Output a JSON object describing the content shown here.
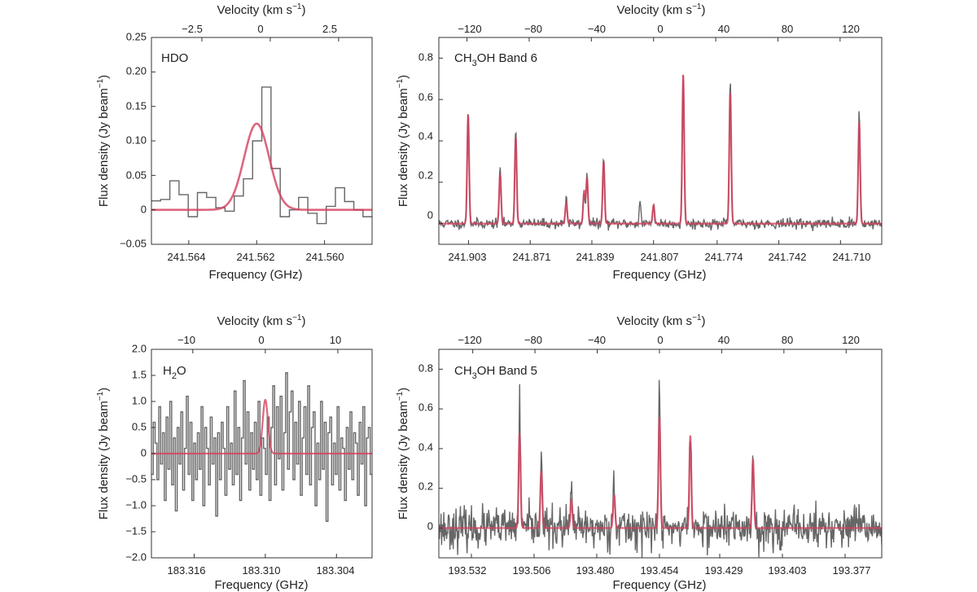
{
  "colors": {
    "data": "#666666",
    "model": "#d6405e",
    "axis": "#333333"
  },
  "chart_data": [
    {
      "type": "line",
      "panel_label": "HDO",
      "xlabel": "Frequency (GHz)",
      "ylabel": "Flux density (Jy beam",
      "ylabel_sup": "−1",
      "ylabel_end": ")",
      "top_label": "Velocity (km s",
      "top_label_sup": "−1",
      "top_label_end": ")",
      "xlim": [
        241.5651,
        241.5586
      ],
      "ylim": [
        -0.05,
        0.25
      ],
      "xticks": [
        241.564,
        241.562,
        241.56
      ],
      "xtick_labels": [
        "241.564",
        "241.562",
        "241.560"
      ],
      "yticks": [
        -0.05,
        0,
        0.05,
        0.1,
        0.15,
        0.2,
        0.25
      ],
      "ytick_labels": [
        "−0.05",
        "0",
        "0.05",
        "0.10",
        "0.15",
        "0.20",
        "0.25"
      ],
      "top_ticks": [
        -2.5,
        0,
        2.5
      ],
      "top_tick_labels": [
        "−2.5",
        "0",
        "2.5"
      ],
      "vel_ref_freq": 241.5616,
      "observed": {
        "style": "step",
        "start": 241.5651,
        "step": -0.000271,
        "values": [
          0.013,
          0.015,
          0.042,
          0.022,
          -0.01,
          0.025,
          0.018,
          0.003,
          -0.002,
          0.02,
          0.045,
          0.1,
          0.178,
          0.06,
          -0.01,
          0.0,
          0.018,
          -0.005,
          -0.02,
          0.005,
          0.032,
          0.012,
          0.0,
          -0.01
        ]
      },
      "model": {
        "style": "line",
        "lines": [
          {
            "center": 241.562,
            "amp": 0.125,
            "width": 0.00037
          }
        ]
      }
    },
    {
      "type": "line",
      "panel_label": "CH",
      "panel_label_sub": "3",
      "panel_label_end": "OH Band 6",
      "xlabel": "Frequency (GHz)",
      "ylabel": "Flux density (Jy beam",
      "ylabel_sup": "−1",
      "ylabel_end": ")",
      "top_label": "Velocity (km s",
      "top_label_sup": "−1",
      "top_label_end": ")",
      "xlim": [
        241.9184,
        241.6886
      ],
      "ylim": [
        -0.1,
        0.9
      ],
      "xticks": [
        241.903,
        241.871,
        241.839,
        241.807,
        241.774,
        241.742,
        241.71
      ],
      "xtick_labels": [
        "241.903",
        "241.871",
        "241.839",
        "241.807",
        "241.774",
        "241.742",
        "241.710"
      ],
      "yticks": [
        0,
        0.2,
        0.4,
        0.6,
        0.8
      ],
      "ytick_labels": [
        "0",
        "0.2",
        "0.4",
        "0.6",
        "0.8"
      ],
      "top_ticks": [
        -120,
        -80,
        -40,
        0,
        40,
        80,
        120
      ],
      "top_tick_labels": [
        "−120",
        "−80",
        "−40",
        "0",
        "40",
        "80",
        "120"
      ],
      "vel_ref_freq": 241.807,
      "observed": {
        "style": "noise",
        "n": 700,
        "noise": 0.012,
        "seed": 11,
        "lines": [
          {
            "center": 241.9032,
            "amp": 0.56,
            "width": 0.00045
          },
          {
            "center": 241.8866,
            "amp": 0.28,
            "width": 0.00045
          },
          {
            "center": 241.8785,
            "amp": 0.47,
            "width": 0.00045
          },
          {
            "center": 241.8523,
            "amp": 0.14,
            "width": 0.00045
          },
          {
            "center": 241.843,
            "amp": 0.16,
            "width": 0.00045
          },
          {
            "center": 241.8415,
            "amp": 0.25,
            "width": 0.00045
          },
          {
            "center": 241.8329,
            "amp": 0.33,
            "width": 0.00045
          },
          {
            "center": 241.814,
            "amp": 0.1,
            "width": 0.00045
          },
          {
            "center": 241.807,
            "amp": 0.09,
            "width": 0.00045
          },
          {
            "center": 241.7916,
            "amp": 0.72,
            "width": 0.00045
          },
          {
            "center": 241.7672,
            "amp": 0.71,
            "width": 0.00045
          },
          {
            "center": 241.7003,
            "amp": 0.55,
            "width": 0.00045
          }
        ]
      },
      "model": {
        "style": "line",
        "lines": [
          {
            "center": 241.9032,
            "amp": 0.53,
            "width": 0.0005
          },
          {
            "center": 241.8866,
            "amp": 0.24,
            "width": 0.0005
          },
          {
            "center": 241.8785,
            "amp": 0.42,
            "width": 0.0005
          },
          {
            "center": 241.8523,
            "amp": 0.1,
            "width": 0.0005
          },
          {
            "center": 241.843,
            "amp": 0.16,
            "width": 0.0005
          },
          {
            "center": 241.8415,
            "amp": 0.22,
            "width": 0.0005
          },
          {
            "center": 241.8329,
            "amp": 0.3,
            "width": 0.0005
          },
          {
            "center": 241.807,
            "amp": 0.09,
            "width": 0.0005
          },
          {
            "center": 241.7916,
            "amp": 0.72,
            "width": 0.0005
          },
          {
            "center": 241.7672,
            "amp": 0.64,
            "width": 0.0005
          },
          {
            "center": 241.7003,
            "amp": 0.49,
            "width": 0.0005
          }
        ]
      }
    },
    {
      "type": "line",
      "panel_label": "H",
      "panel_label_sub": "2",
      "panel_label_end": "O",
      "xlabel": "Frequency (GHz)",
      "ylabel": "Flux density (Jy beam",
      "ylabel_sup": "−1",
      "ylabel_end": ")",
      "top_label": "Velocity (km s",
      "top_label_sup": "−1",
      "top_label_end": ")",
      "xlim": [
        183.3196,
        183.301
      ],
      "ylim": [
        -2.0,
        2.0
      ],
      "xticks": [
        183.316,
        183.31,
        183.304
      ],
      "xtick_labels": [
        "183.316",
        "183.310",
        "183.304"
      ],
      "yticks": [
        -2.0,
        -1.5,
        -1.0,
        -0.5,
        0,
        0.5,
        1.0,
        1.5,
        2.0
      ],
      "ytick_labels": [
        "−2.0",
        "−1.5",
        "−1.0",
        "−0.5",
        "0",
        "0.5",
        "1.0",
        "1.5",
        "2.0"
      ],
      "top_ticks": [
        -10,
        0,
        10
      ],
      "top_tick_labels": [
        "−10",
        "0",
        "10"
      ],
      "vel_ref_freq": 183.31,
      "observed": {
        "style": "step",
        "start": 183.3196,
        "step": -0.000155,
        "values": [
          -0.4,
          0.6,
          0.2,
          -0.5,
          0.9,
          -0.2,
          0.4,
          -0.9,
          0.7,
          -0.3,
          1.0,
          -0.6,
          0.3,
          -1.1,
          0.5,
          -0.2,
          0.8,
          -0.7,
          0.1,
          1.1,
          -0.4,
          0.6,
          -0.9,
          0.2,
          -0.5,
          0.4,
          -0.3,
          0.9,
          -1.0,
          0.5,
          0.1,
          -0.6,
          0.7,
          -0.2,
          0.3,
          -1.2,
          0.4,
          -0.5,
          0.6,
          0.1,
          -0.8,
          0.9,
          -0.3,
          0.2,
          -0.6,
          1.2,
          -0.4,
          0.5,
          -0.9,
          0.3,
          1.4,
          -0.2,
          0.8,
          -0.7,
          0.4,
          -0.3,
          0.6,
          -0.5,
          1.0,
          -0.8,
          0.3,
          0.1,
          -0.4,
          0.7,
          -0.9,
          0.5,
          1.3,
          -0.6,
          0.9,
          -0.1,
          1.1,
          -0.7,
          0.4,
          1.55,
          -0.3,
          0.8,
          1.2,
          -0.5,
          0.6,
          -0.2,
          1.0,
          -0.8,
          0.3,
          0.9,
          -0.4,
          1.3,
          -0.6,
          0.5,
          0.8,
          -1.0,
          0.2,
          -0.5,
          1.0,
          -0.3,
          0.6,
          -1.3,
          0.4,
          0.7,
          -0.6,
          0.2,
          -0.4,
          0.9,
          -0.7,
          0.3,
          0.1,
          -0.9,
          0.5,
          -0.3,
          0.8,
          -0.5,
          0.4,
          0.2,
          -0.8,
          0.6,
          -0.2,
          0.9,
          -1.0,
          0.3,
          0.5,
          -0.4
        ]
      },
      "model": {
        "style": "line",
        "lines": [
          {
            "center": 183.31,
            "amp": 1.03,
            "width": 0.00022
          }
        ]
      }
    },
    {
      "type": "line",
      "panel_label": "CH",
      "panel_label_sub": "3",
      "panel_label_end": "OH Band 5",
      "xlabel": "Frequency (GHz)",
      "ylabel": "Flux density (Jy beam",
      "ylabel_sup": "−1",
      "ylabel_end": ")",
      "top_label": "Velocity (km s",
      "top_label_sup": "−1",
      "top_label_end": ")",
      "xlim": [
        193.5455,
        193.3618
      ],
      "ylim": [
        -0.15,
        0.9
      ],
      "xticks": [
        193.532,
        193.506,
        193.48,
        193.454,
        193.429,
        193.403,
        193.377
      ],
      "xtick_labels": [
        "193.532",
        "193.506",
        "193.480",
        "193.454",
        "193.429",
        "193.403",
        "193.377"
      ],
      "yticks": [
        0,
        0.2,
        0.4,
        0.6,
        0.8
      ],
      "ytick_labels": [
        "0",
        "0.2",
        "0.4",
        "0.6",
        "0.8"
      ],
      "top_ticks": [
        -120,
        -80,
        -40,
        0,
        40,
        80,
        120
      ],
      "top_tick_labels": [
        "−120",
        "−80",
        "−40",
        "0",
        "40",
        "80",
        "120"
      ],
      "vel_ref_freq": 193.454,
      "observed": {
        "style": "noise",
        "n": 800,
        "noise": 0.05,
        "seed": 23,
        "lines": [
          {
            "center": 193.512,
            "amp": 0.6,
            "width": 0.00035
          },
          {
            "center": 193.503,
            "amp": 0.4,
            "width": 0.00035
          },
          {
            "center": 193.4905,
            "amp": 0.2,
            "width": 0.00035
          },
          {
            "center": 193.4728,
            "amp": 0.31,
            "width": 0.00035
          },
          {
            "center": 193.454,
            "amp": 0.73,
            "width": 0.00035
          },
          {
            "center": 193.4412,
            "amp": 0.53,
            "width": 0.00035
          },
          {
            "center": 193.4152,
            "amp": 0.37,
            "width": 0.00035
          }
        ]
      },
      "model": {
        "style": "line",
        "lines": [
          {
            "center": 193.512,
            "amp": 0.48,
            "width": 0.0004
          },
          {
            "center": 193.503,
            "amp": 0.29,
            "width": 0.0004
          },
          {
            "center": 193.4905,
            "amp": 0.14,
            "width": 0.0004
          },
          {
            "center": 193.4728,
            "amp": 0.17,
            "width": 0.0004
          },
          {
            "center": 193.454,
            "amp": 0.56,
            "width": 0.0004
          },
          {
            "center": 193.4412,
            "amp": 0.47,
            "width": 0.0004
          },
          {
            "center": 193.4152,
            "amp": 0.35,
            "width": 0.0004
          }
        ]
      }
    }
  ]
}
